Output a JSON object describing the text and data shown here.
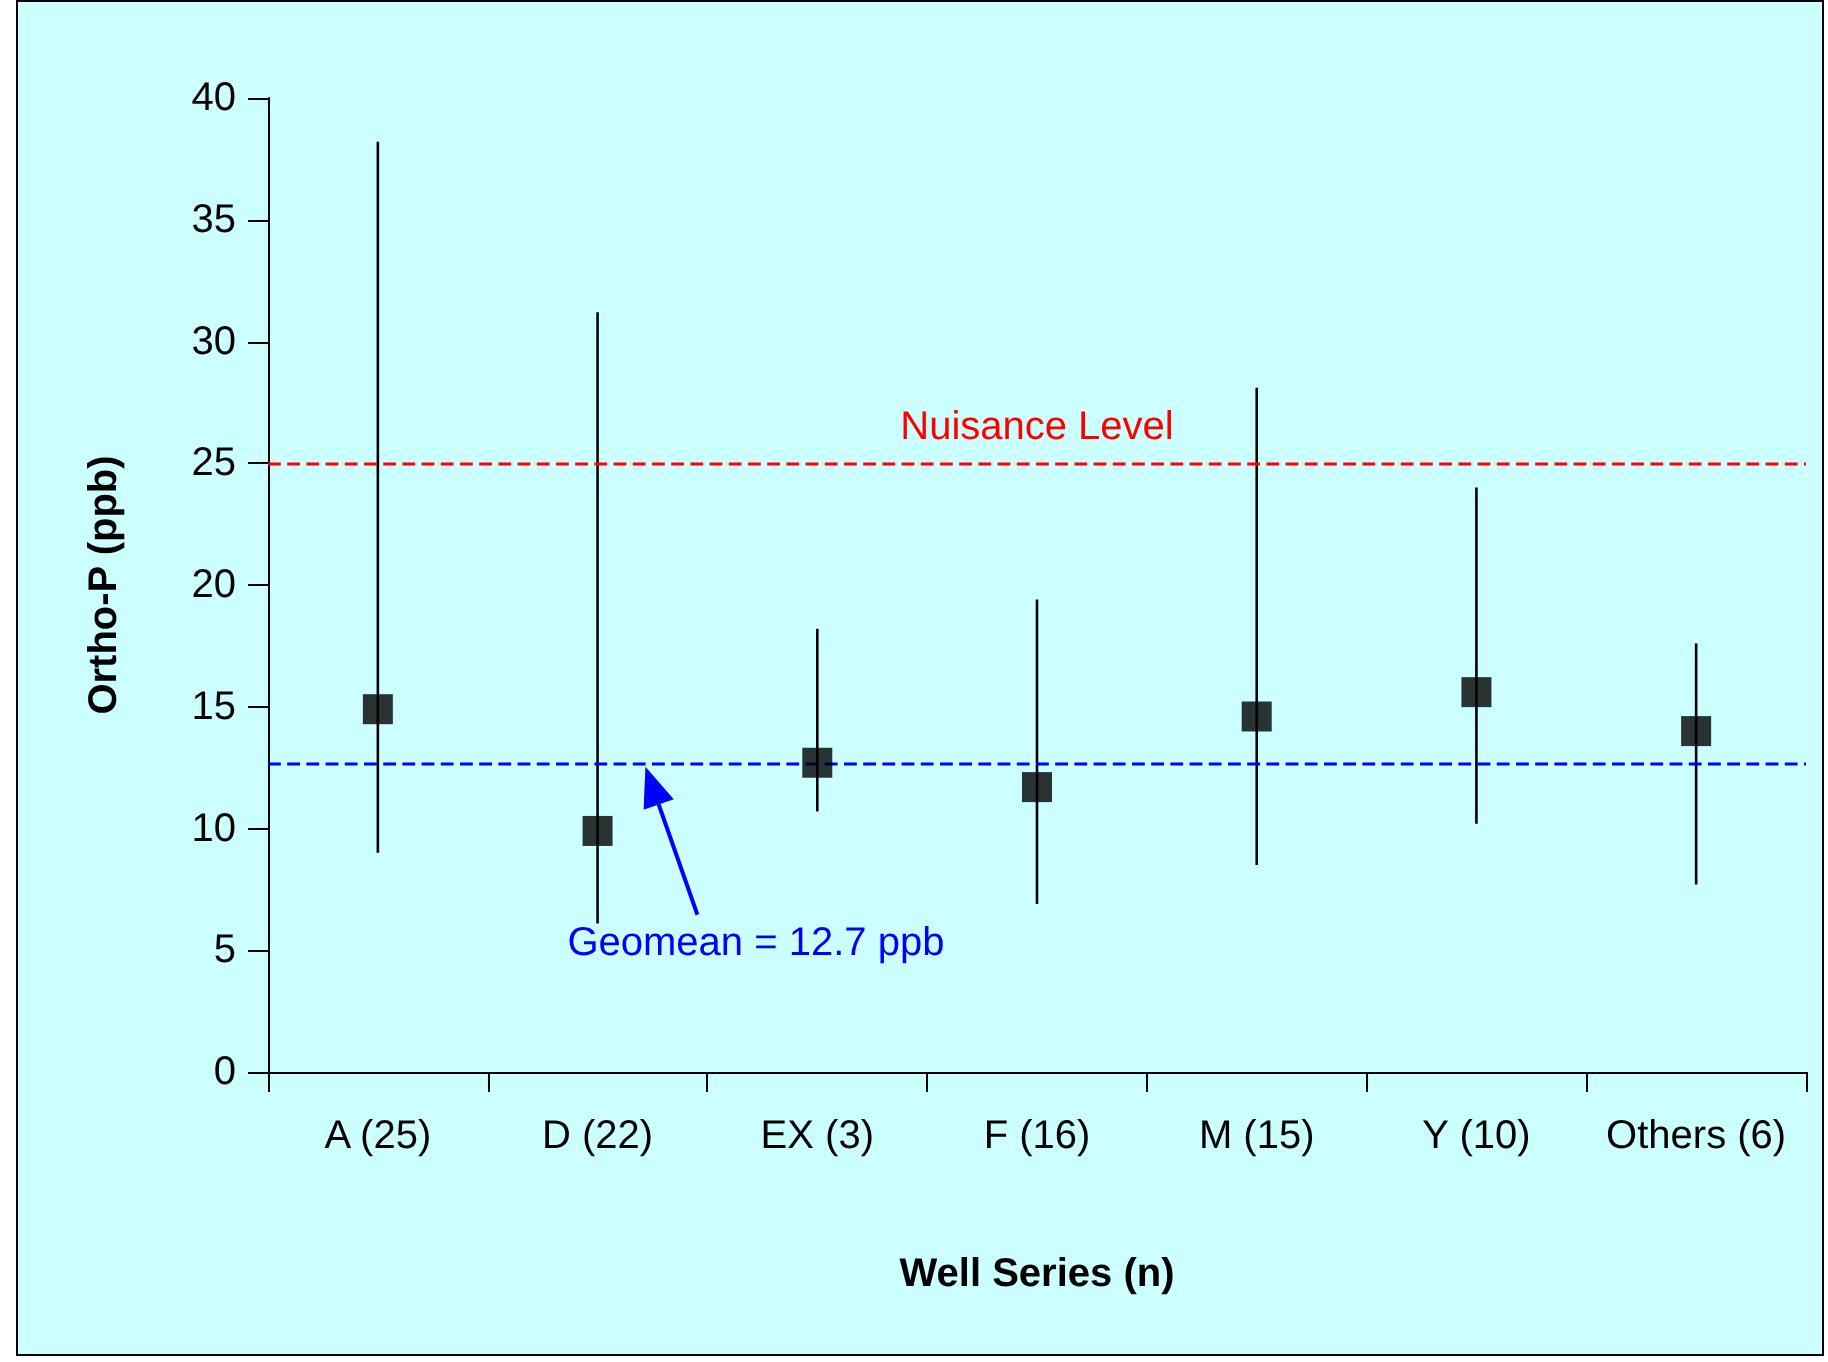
{
  "chart_data": {
    "type": "scatter",
    "ylabel": "Ortho-P (ppb)",
    "xlabel": "Well Series (n)",
    "categories": [
      "A (25)",
      "D (22)",
      "EX (3)",
      "F (16)",
      "M (15)",
      "Y (10)",
      "Others (6)"
    ],
    "series": [
      {
        "color": "#000000",
        "values": [
          14.9,
          9.9,
          12.7,
          11.7,
          14.6,
          15.6,
          14.0
        ],
        "errors": [
          [
            9.0,
            38.2
          ],
          [
            6.1,
            31.2
          ],
          [
            10.7,
            18.2
          ],
          [
            6.9,
            19.4
          ],
          [
            8.5,
            28.1
          ],
          [
            10.2,
            24.0
          ],
          [
            7.7,
            17.6
          ]
        ]
      }
    ],
    "marker": "square",
    "ylim": [
      0,
      40
    ],
    "yticks": [
      0,
      5,
      10,
      15,
      20,
      25,
      30,
      35,
      40
    ],
    "ref_lines": [
      {
        "axis": "y",
        "value": 25,
        "label": "Nuisance Level",
        "color": "#ff0000",
        "line_style": "dashed"
      },
      {
        "axis": "y",
        "value": 12.7,
        "label": "Geomean = 12.7 ppb",
        "color": "#0000ff",
        "line_style": "dashed"
      }
    ],
    "grid": false
  }
}
